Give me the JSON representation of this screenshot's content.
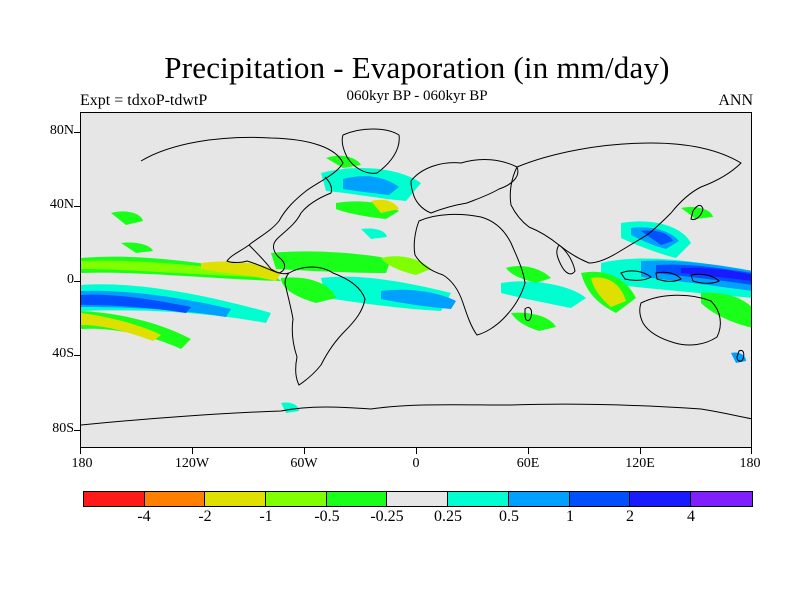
{
  "title": "Precipitation - Evaporation (in mm/day)",
  "subtitle": "060kyr BP - 060kyr BP",
  "left_label": "Expt = tdxoP-tdwtP",
  "right_label": "ANN",
  "y_ticks": [
    "80N",
    "40N",
    "0",
    "40S",
    "80S"
  ],
  "x_ticks": [
    "180",
    "120W",
    "60W",
    "0",
    "60E",
    "120E",
    "180"
  ],
  "colorbar": {
    "labels": [
      "-4",
      "-2",
      "-1",
      "-0.5",
      "-0.25",
      "0.25",
      "0.5",
      "1",
      "2",
      "4"
    ],
    "colors": [
      "#ff1a1a",
      "#ff8000",
      "#e0e000",
      "#80ff00",
      "#1aff1a",
      "#e6e6e6",
      "#00ffd0",
      "#00a0ff",
      "#0050ff",
      "#1a1aff",
      "#8020ff"
    ]
  },
  "map_colors": {
    "background": "#e6e6e6",
    "land_outline": "#000000"
  },
  "chart_data": {
    "type": "heatmap",
    "title": "Precipitation - Evaporation (in mm/day)",
    "subtitle": "060kyr BP - 060kyr BP",
    "xlabel": "",
    "ylabel": "",
    "x_range": [
      -180,
      180
    ],
    "y_range": [
      -90,
      90
    ],
    "contour_levels": [
      -4,
      -2,
      -1,
      -0.5,
      -0.25,
      0.25,
      0.5,
      1,
      2,
      4
    ]
  }
}
